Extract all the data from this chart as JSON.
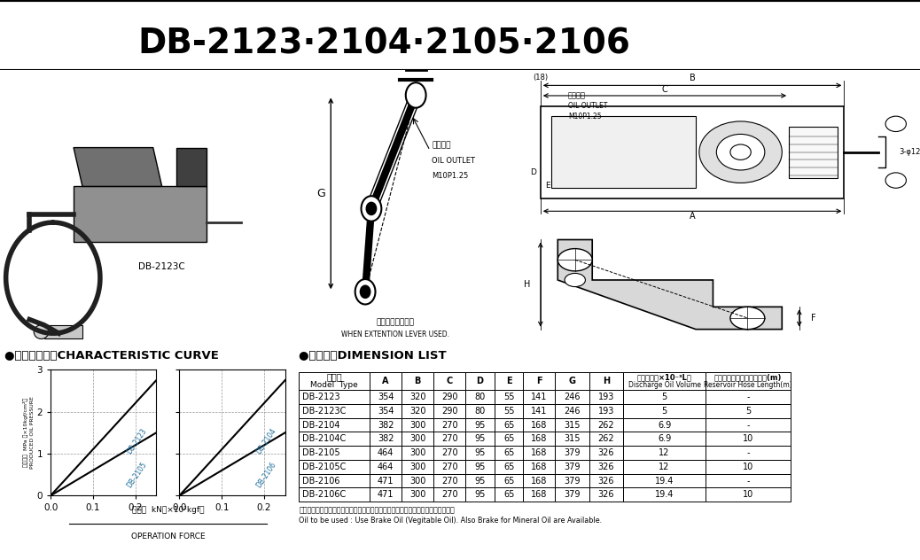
{
  "title": "DB-2123·2104·2105·2106",
  "bg_color": "#ffffff",
  "title_fontsize": 28,
  "section_header_char": "●",
  "char_curve_title": "特性カーブ・CHARACTERISTIC CURVE",
  "dim_list_title": "寸法表・DIMENSION LIST",
  "ylabel_jp": "発生油圧  MPa （×10kgf/cm²）",
  "ylabel_en": "PRODUCED OIL PRESSURE",
  "xlabel_jp": "操作力  kN（×10²kgf）",
  "xlabel_en": "OPERATION FORCE",
  "graph1_lines": [
    {
      "label": "DB-2123",
      "x": [
        0,
        0.25
      ],
      "y": [
        0,
        2.75
      ]
    },
    {
      "label": "DB-2105",
      "x": [
        0,
        0.25
      ],
      "y": [
        0,
        1.5
      ]
    }
  ],
  "graph2_lines": [
    {
      "label": "DB-2104",
      "x": [
        0,
        0.25
      ],
      "y": [
        0,
        2.75
      ]
    },
    {
      "label": "DB-2106",
      "x": [
        0,
        0.25
      ],
      "y": [
        0,
        1.5
      ]
    }
  ],
  "graph_xlim": [
    0,
    0.25
  ],
  "graph_ylim": [
    0,
    3
  ],
  "graph_xticks": [
    0,
    0.1,
    0.2
  ],
  "graph_yticks": [
    0,
    1,
    2,
    3
  ],
  "table_header_row1_jp": "型　式",
  "table_header_row1_cols": [
    "A",
    "B",
    "C",
    "D",
    "E",
    "F",
    "G",
    "H"
  ],
  "table_header_discharge_jp": "吼出油量（×10⁻³L）",
  "table_header_discharge_en": "Discharge Oil Volume",
  "table_header_hose_jp": "リザーブタンクホース長さ(m)",
  "table_header_hose_en": "Reservoir Hose Length(m)",
  "table_header_model_en": "Model  Type",
  "table_rows": [
    [
      "DB-2123",
      "354",
      "320",
      "290",
      "80",
      "55",
      "141",
      "246",
      "193",
      "5",
      "-"
    ],
    [
      "DB-2123C",
      "354",
      "320",
      "290",
      "80",
      "55",
      "141",
      "246",
      "193",
      "5",
      "5"
    ],
    [
      "DB-2104",
      "382",
      "300",
      "270",
      "95",
      "65",
      "168",
      "315",
      "262",
      "6.9",
      "-"
    ],
    [
      "DB-2104C",
      "382",
      "300",
      "270",
      "95",
      "65",
      "168",
      "315",
      "262",
      "6.9",
      "10"
    ],
    [
      "DB-2105",
      "464",
      "300",
      "270",
      "95",
      "65",
      "168",
      "379",
      "326",
      "12",
      "-"
    ],
    [
      "DB-2105C",
      "464",
      "300",
      "270",
      "95",
      "65",
      "168",
      "379",
      "326",
      "12",
      "10"
    ],
    [
      "DB-2106",
      "471",
      "300",
      "270",
      "95",
      "65",
      "168",
      "379",
      "326",
      "19.4",
      "-"
    ],
    [
      "DB-2106C",
      "471",
      "300",
      "270",
      "95",
      "65",
      "168",
      "379",
      "326",
      "19.4",
      "10"
    ]
  ],
  "footnote_jp": "作動液：ブレーキ液（植物油）を御使用下さい。他に鉱物油も準備しております。",
  "footnote_en": "Oil to be used : Use Brake Oil (Vegitable Oil). Also Brake for Mineral Oil are Available.",
  "product_label": "DB-2123C",
  "label_color": "#1a6b9a",
  "line_color": "#000000",
  "graph_label_color": "#1a6b9a",
  "lever_label_bottom_jp": "補助レバー使用時",
  "lever_label_bottom_en": "WHEN EXTENTION LEVER USED.",
  "oil_outlet_jp": "油吐出口",
  "oil_outlet_en": "OIL OUTLET",
  "oil_outlet_spec": "M10P1.25",
  "dim_labels_top": [
    "(18)",
    "B",
    "C",
    "D",
    "E",
    "A",
    "3-φ12"
  ],
  "dim_labels_side": [
    "H",
    "F"
  ]
}
